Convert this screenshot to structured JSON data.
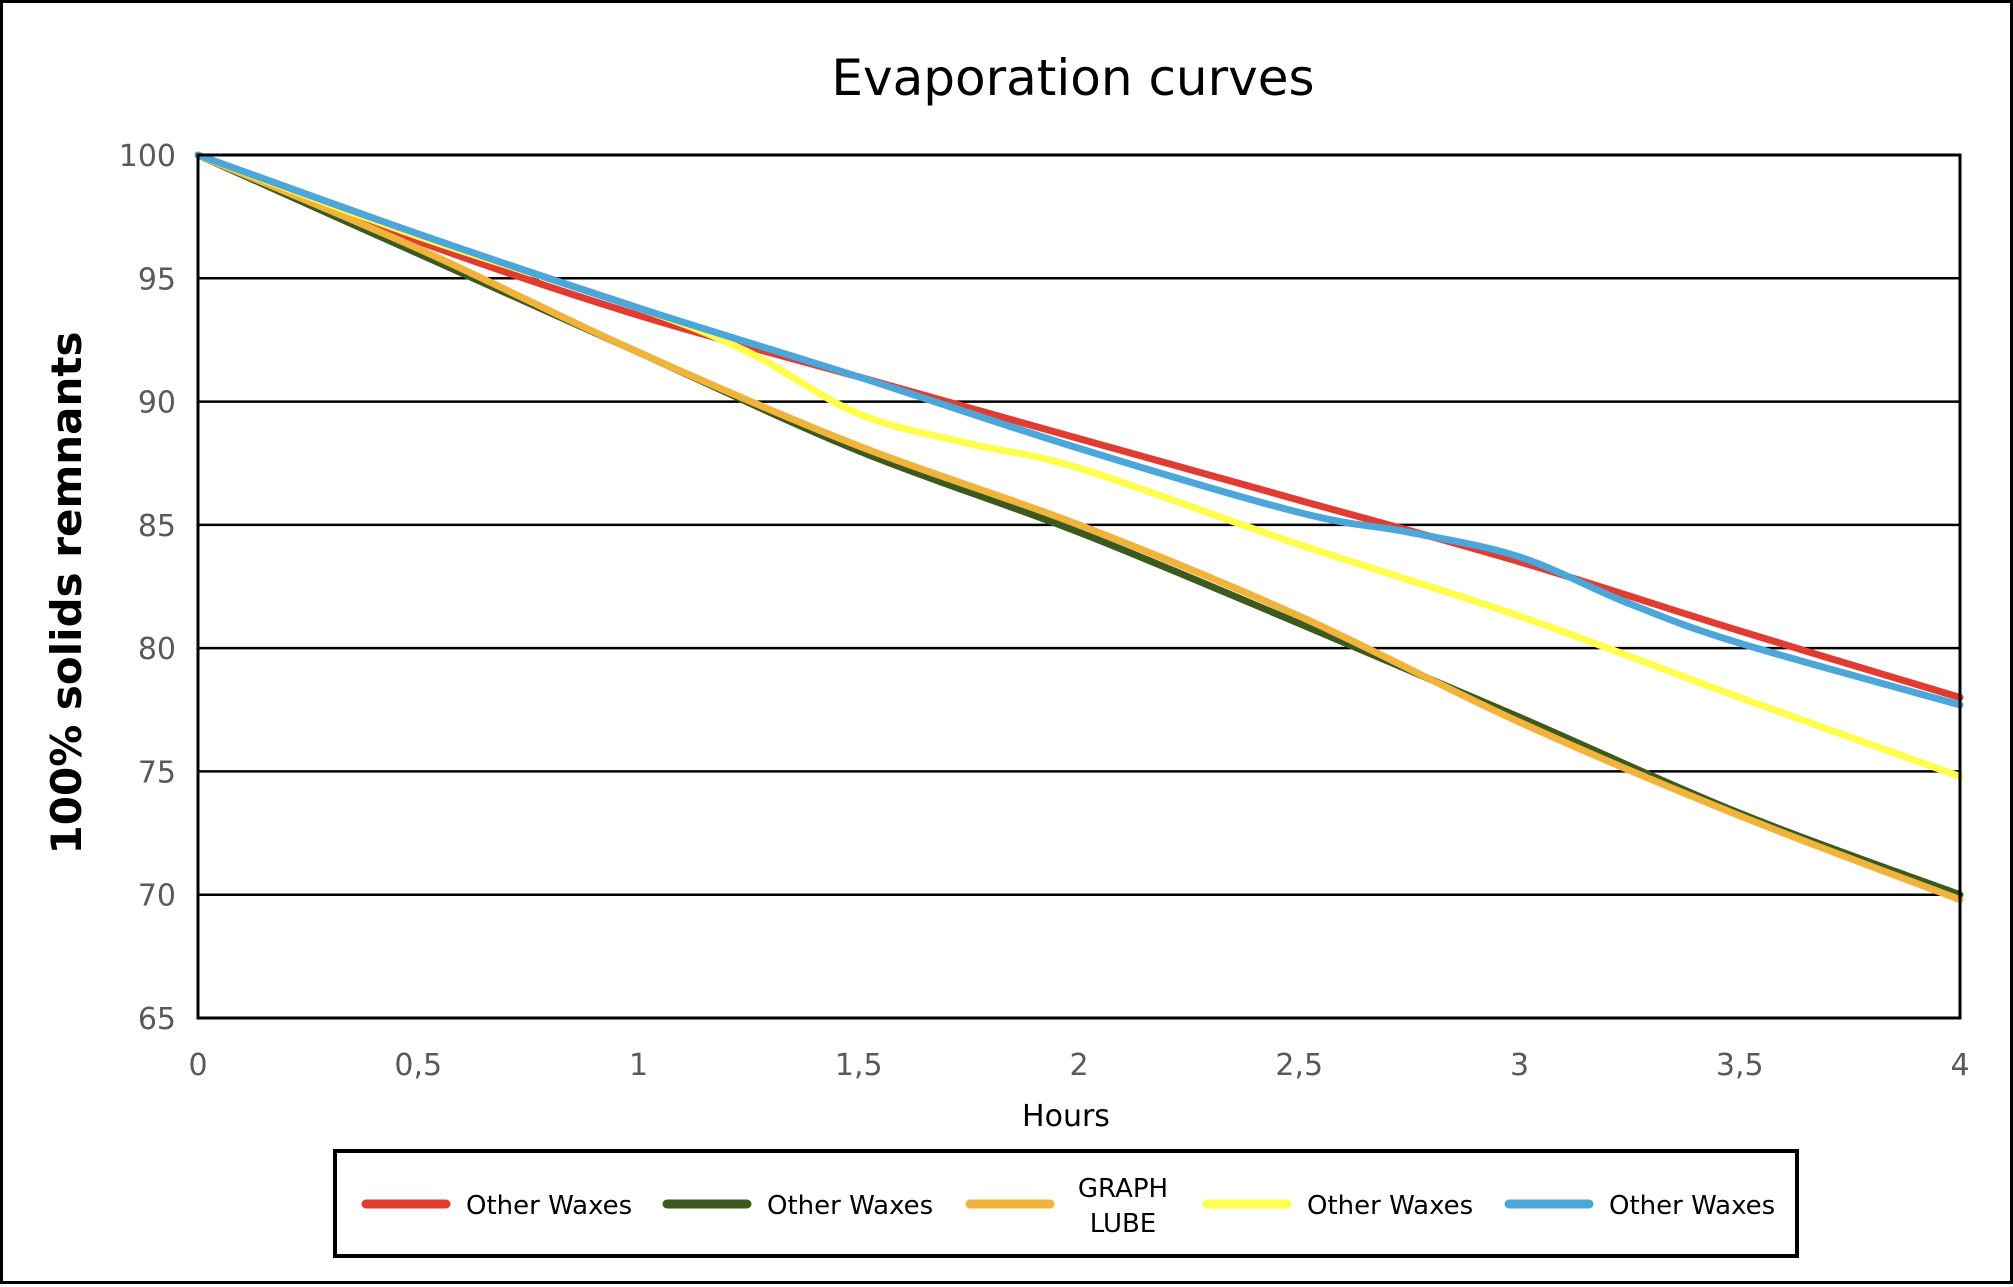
{
  "chart_data": {
    "type": "line",
    "title": "Evaporation curves",
    "xlabel": "Hours",
    "ylabel": "100% solids remnants",
    "xlim": [
      0,
      4
    ],
    "ylim": [
      65,
      100
    ],
    "x_ticks": [
      "0",
      "0,5",
      "1",
      "1,5",
      "2",
      "2,5",
      "3",
      "3,5",
      "4"
    ],
    "y_ticks": [
      "65",
      "70",
      "75",
      "80",
      "85",
      "90",
      "95",
      "100"
    ],
    "grid": "horizontal",
    "legend_position": "bottom",
    "series": [
      {
        "name": "Other Waxes",
        "color": "#e03c31",
        "x": [
          0,
          0.5,
          1,
          1.5,
          2,
          2.5,
          3,
          3.5,
          4
        ],
        "y": [
          100,
          96.5,
          93.5,
          91,
          88.5,
          86,
          83.5,
          80.7,
          78
        ]
      },
      {
        "name": "Other Waxes",
        "color": "#3d5a1e",
        "x": [
          0,
          0.5,
          1,
          1.5,
          2,
          2.5,
          3,
          3.5,
          4
        ],
        "y": [
          100,
          96,
          92,
          88,
          84.7,
          81,
          77.2,
          73.3,
          70
        ]
      },
      {
        "name": "GRAPH LUBE",
        "color": "#f0b33c",
        "x": [
          0,
          0.5,
          1,
          1.5,
          2,
          2.5,
          3,
          3.5,
          4
        ],
        "y": [
          100,
          96.2,
          92,
          88.2,
          85,
          81.3,
          77,
          73.2,
          69.8
        ]
      },
      {
        "name": "Other Waxes",
        "color": "#ffff4d",
        "x": [
          0,
          0.5,
          1,
          1.25,
          1.5,
          1.75,
          2,
          2.5,
          3,
          3.5,
          4
        ],
        "y": [
          100,
          96.7,
          93.8,
          92,
          89.5,
          88.3,
          87.3,
          84.2,
          81.3,
          78,
          74.8
        ]
      },
      {
        "name": "Other Waxes",
        "color": "#4da6d9",
        "x": [
          0,
          0.5,
          1,
          1.5,
          2,
          2.5,
          2.75,
          3,
          3.25,
          3.5,
          4
        ],
        "y": [
          100,
          96.8,
          93.8,
          91,
          88.1,
          85.5,
          84.7,
          83.7,
          81.8,
          80.2,
          77.7
        ]
      }
    ],
    "legend": [
      {
        "label": "Other Waxes",
        "color": "#e03c31"
      },
      {
        "label": "Other Waxes",
        "color": "#3d5a1e"
      },
      {
        "label_line1": "GRAPH",
        "label_line2": "LUBE",
        "color": "#f0b33c"
      },
      {
        "label": "Other Waxes",
        "color": "#ffff4d"
      },
      {
        "label": "Other Waxes",
        "color": "#4da6d9"
      }
    ]
  }
}
